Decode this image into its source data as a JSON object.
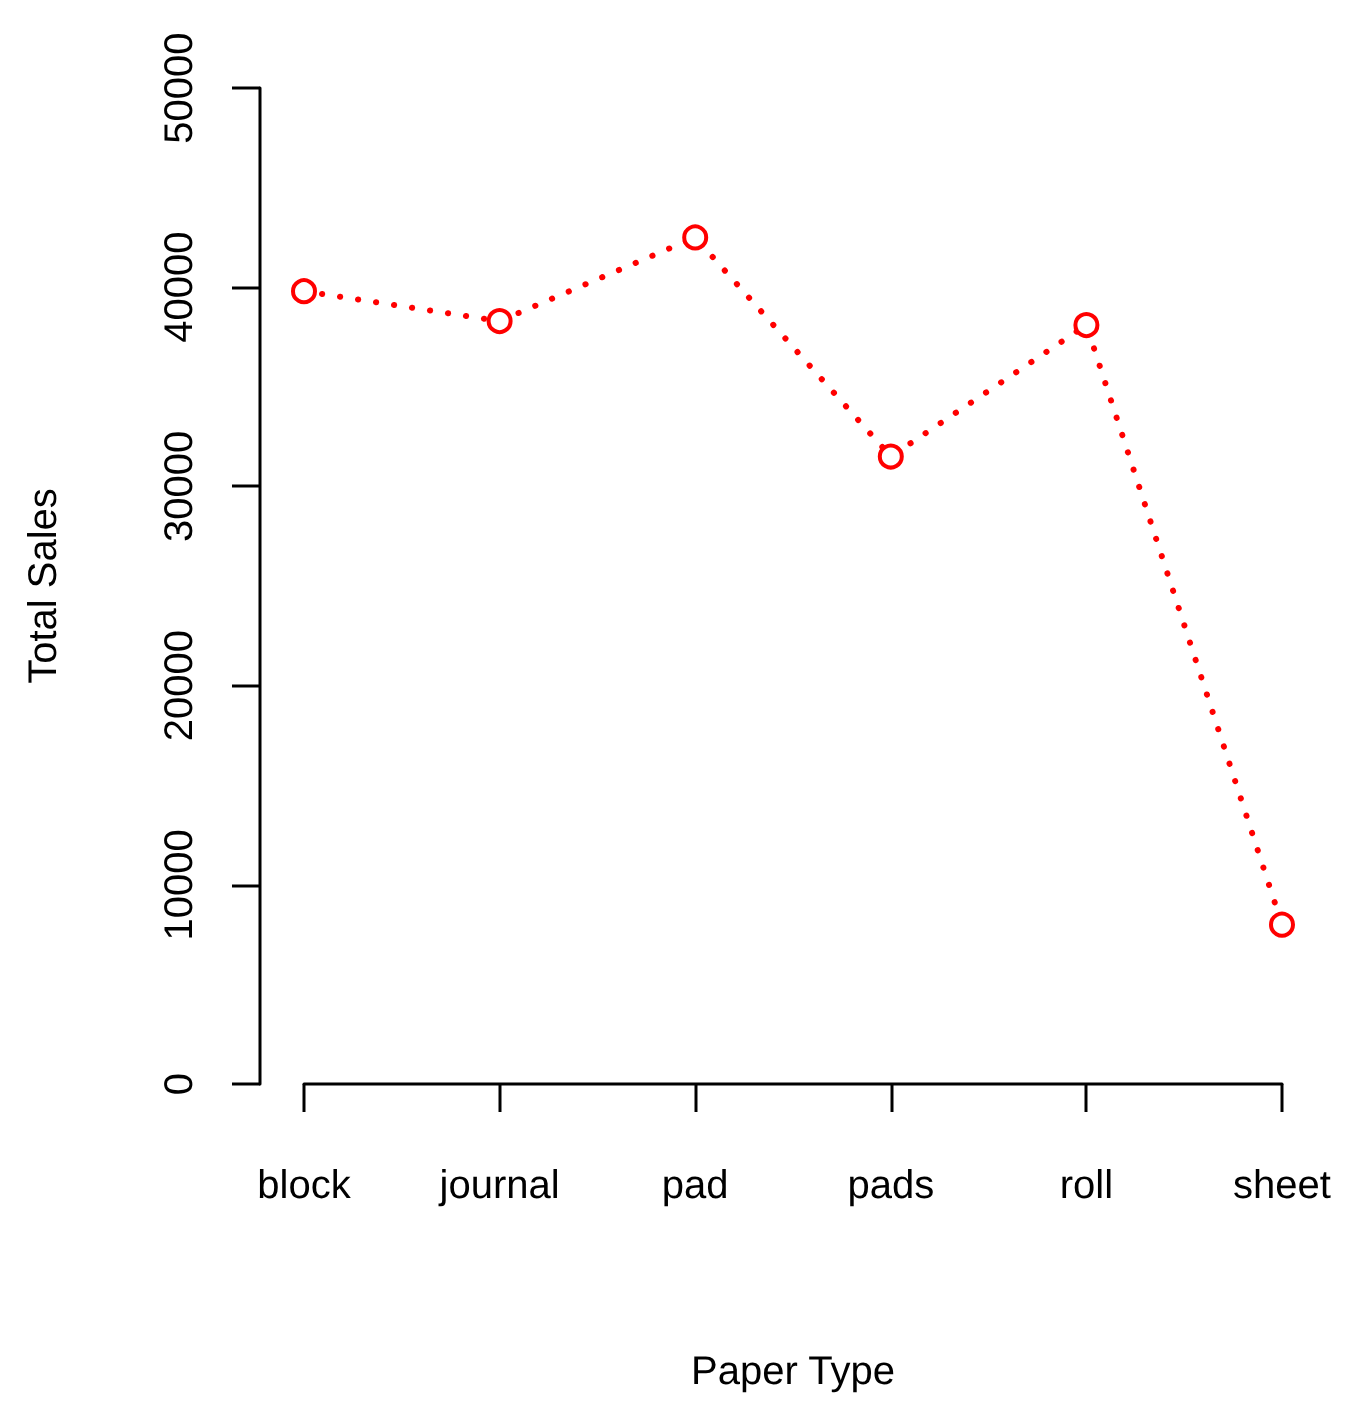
{
  "chart_data": {
    "type": "line",
    "xlabel": "Paper Type",
    "ylabel": "Total Sales",
    "categories": [
      "block",
      "journal",
      "pad",
      "pads",
      "roll",
      "sheet"
    ],
    "series": [
      {
        "color": "#ff0000",
        "values": [
          39800,
          38300,
          42500,
          31500,
          38100,
          8000
        ]
      }
    ],
    "ylim": [
      0,
      50000
    ],
    "yticks": [
      0,
      10000,
      20000,
      30000,
      40000,
      50000
    ],
    "marker": "circle",
    "line_style": "dotted",
    "grid": false
  }
}
